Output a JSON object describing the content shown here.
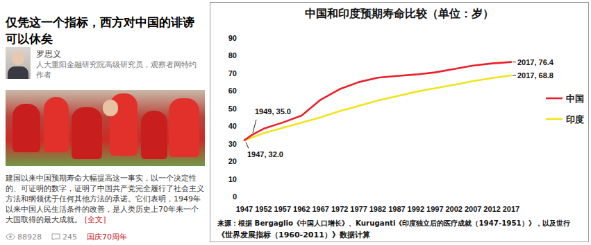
{
  "article": {
    "title": "仅凭这一个指标，西方对中国的诽谤可以休矣",
    "author": {
      "name": "罗思义",
      "bio": "人大重阳金融研究院高级研究员，观察者网特约作者"
    },
    "summary": "建国以来中国预期寿命大幅提高这一事实，以一个决定性的、可证明的数字，证明了中国共产党完全履行了社会主义方法和纲领优于任何其他方法的承诺。它们表明，1949年以来中国人民生活条件的改善，是人类历史上70年来一个大国取得的最大成就。",
    "more": "[全文]",
    "views": 88928,
    "comments": 245,
    "tag": "国庆70周年"
  },
  "chart_data": {
    "type": "line",
    "title": "中国和印度预期寿命比较（单位：岁）",
    "x": [
      1947,
      1949,
      1952,
      1957,
      1962,
      1967,
      1972,
      1977,
      1982,
      1987,
      1992,
      1997,
      2002,
      2007,
      2012,
      2017
    ],
    "series": [
      {
        "name": "中国",
        "color": "#e8202a",
        "values": [
          32.0,
          35.0,
          38.5,
          42.0,
          46.0,
          55.0,
          61.0,
          65.0,
          67.5,
          68.5,
          69.3,
          70.5,
          72.4,
          74.4,
          75.6,
          76.4
        ]
      },
      {
        "name": "印度",
        "color": "#f2e31a",
        "values": [
          32.0,
          33.5,
          36.0,
          39.0,
          42.0,
          45.0,
          48.5,
          51.5,
          54.5,
          57.0,
          59.5,
          61.5,
          63.5,
          65.5,
          67.3,
          68.8
        ]
      }
    ],
    "xlim": [
      1947,
      2017
    ],
    "xticks": [
      1947,
      1952,
      1957,
      1962,
      1967,
      1972,
      1977,
      1982,
      1987,
      1992,
      1997,
      2002,
      2007,
      2012,
      2017
    ],
    "ylim": [
      0,
      90
    ],
    "yticks": [
      0,
      10,
      20,
      30,
      40,
      50,
      60,
      70,
      80,
      90
    ],
    "grid": false,
    "legend": "right",
    "annotations": [
      {
        "text": "1949, 35.0",
        "x": 1949,
        "y": 35.0
      },
      {
        "text": "1947, 32.0",
        "x": 1947,
        "y": 32.0
      },
      {
        "text": "2017, 76.4",
        "x": 2017,
        "y": 76.4
      },
      {
        "text": "2017, 68.8",
        "x": 2017,
        "y": 68.8
      }
    ],
    "source": [
      "来源：根据 Bergaglio《中国人口增长》、Kuruganti《印度独立后的医疗成就（1947-1951）》，以及世行",
      "《世界发展指标（1960-2011）》数据计算"
    ]
  }
}
